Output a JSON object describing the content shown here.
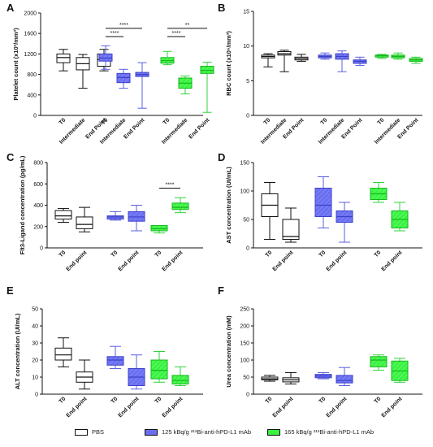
{
  "legend": {
    "pbs": "PBS",
    "blue": "125 kBq/g ²¹³Bi-anti-hPD-L1 mAb",
    "green": "165 kBq/g ²¹³Bi-anti-hPD-L1 mAb"
  },
  "colors": {
    "pbs": "#ffffff",
    "blue": "#6a6ff0",
    "green": "#39f241",
    "edge": "#111111"
  },
  "chart_data": [
    {
      "type": "box",
      "panel": "A",
      "ylabel": "Platelet count (x10³/mm³)",
      "yticks": [
        0,
        400,
        800,
        1200,
        1600,
        2000
      ],
      "ylim": [
        0,
        2000
      ],
      "xticks": [
        "T0",
        "Intermediate",
        "End Point",
        "T0",
        "Intermediate",
        "End Point",
        "T0",
        "Intermediate",
        "End Point"
      ],
      "groups": [
        {
          "series": "pbs",
          "boxes": [
            {
              "min": 870,
              "q1": 1030,
              "median": 1130,
              "q3": 1200,
              "max": 1290
            },
            {
              "min": 530,
              "q1": 890,
              "median": 1010,
              "q3": 1130,
              "max": 1190
            },
            {
              "min": 870,
              "q1": 960,
              "median": 1090,
              "q3": 1200,
              "max": 1290
            }
          ]
        },
        {
          "series": "blue",
          "boxes": [
            {
              "min": 900,
              "q1": 1060,
              "median": 1120,
              "q3": 1200,
              "max": 1360
            },
            {
              "min": 530,
              "q1": 640,
              "median": 740,
              "q3": 820,
              "max": 900
            },
            {
              "min": 140,
              "q1": 760,
              "median": 800,
              "q3": 840,
              "max": 1030
            }
          ]
        },
        {
          "series": "green",
          "boxes": [
            {
              "min": 990,
              "q1": 1020,
              "median": 1070,
              "q3": 1130,
              "max": 1250
            },
            {
              "min": 420,
              "q1": 530,
              "median": 630,
              "q3": 730,
              "max": 770
            },
            {
              "min": 60,
              "q1": 820,
              "median": 880,
              "q3": 960,
              "max": 1040
            }
          ]
        }
      ],
      "annotations": [
        "****",
        "****",
        "****",
        "****",
        "**"
      ]
    },
    {
      "type": "box",
      "panel": "B",
      "ylabel": "RBC count (x10⁶/mm³)",
      "yticks": [
        0,
        5,
        10,
        15
      ],
      "ylim": [
        0,
        15
      ],
      "xticks": [
        "T0",
        "Intermediate",
        "End Point",
        "T0",
        "Intermediate",
        "End Point",
        "T0",
        "Intermediate",
        "End Point"
      ],
      "groups": [
        {
          "series": "pbs",
          "boxes": [
            {
              "min": 7.0,
              "q1": 8.3,
              "median": 8.5,
              "q3": 8.7,
              "max": 8.9
            },
            {
              "min": 6.3,
              "q1": 8.7,
              "median": 8.9,
              "q3": 9.2,
              "max": 9.4
            },
            {
              "min": 7.8,
              "q1": 8.0,
              "median": 8.2,
              "q3": 8.4,
              "max": 8.8
            }
          ]
        },
        {
          "series": "blue",
          "boxes": [
            {
              "min": 8.1,
              "q1": 8.3,
              "median": 8.5,
              "q3": 8.7,
              "max": 9.0
            },
            {
              "min": 6.3,
              "q1": 8.1,
              "median": 8.5,
              "q3": 8.9,
              "max": 9.3
            },
            {
              "min": 7.2,
              "q1": 7.5,
              "median": 7.8,
              "q3": 8.0,
              "max": 8.4
            }
          ]
        },
        {
          "series": "green",
          "boxes": [
            {
              "min": 8.2,
              "q1": 8.4,
              "median": 8.6,
              "q3": 8.7,
              "max": 8.8
            },
            {
              "min": 8.1,
              "q1": 8.3,
              "median": 8.5,
              "q3": 8.7,
              "max": 9.0
            },
            {
              "min": 7.5,
              "q1": 7.8,
              "median": 8.0,
              "q3": 8.2,
              "max": 8.4
            }
          ]
        }
      ],
      "annotations": []
    },
    {
      "type": "box",
      "panel": "C",
      "ylabel": "Flt3-Ligand concentration (pg/mL)",
      "yticks": [
        0,
        200,
        400,
        600,
        800
      ],
      "ylim": [
        0,
        800
      ],
      "xticks": [
        "T0",
        "End point",
        "T0",
        "End point",
        "T0",
        "End point"
      ],
      "groups": [
        {
          "series": "pbs",
          "boxes": [
            {
              "min": 240,
              "q1": 270,
              "median": 300,
              "q3": 350,
              "max": 370
            },
            {
              "min": 150,
              "q1": 180,
              "median": 220,
              "q3": 290,
              "max": 380
            }
          ]
        },
        {
          "series": "blue",
          "boxes": [
            {
              "min": 260,
              "q1": 270,
              "median": 290,
              "q3": 300,
              "max": 340
            },
            {
              "min": 160,
              "q1": 250,
              "median": 290,
              "q3": 340,
              "max": 400
            }
          ]
        },
        {
          "series": "green",
          "boxes": [
            {
              "min": 140,
              "q1": 160,
              "median": 180,
              "q3": 210,
              "max": 210
            },
            {
              "min": 330,
              "q1": 360,
              "median": 380,
              "q3": 420,
              "max": 470
            }
          ]
        }
      ],
      "annotations": [
        "****"
      ]
    },
    {
      "type": "box",
      "panel": "D",
      "ylabel": "AST concentration (UI/mL)",
      "yticks": [
        0,
        50,
        100,
        150
      ],
      "ylim": [
        0,
        150
      ],
      "xticks": [
        "T0",
        "End point",
        "T0",
        "End point",
        "T0",
        "End point"
      ],
      "groups": [
        {
          "series": "pbs",
          "boxes": [
            {
              "min": 15,
              "q1": 55,
              "median": 75,
              "q3": 95,
              "max": 115
            },
            {
              "min": 10,
              "q1": 15,
              "median": 20,
              "q3": 50,
              "max": 70
            }
          ]
        },
        {
          "series": "blue",
          "boxes": [
            {
              "min": 35,
              "q1": 55,
              "median": 75,
              "q3": 105,
              "max": 125
            },
            {
              "min": 10,
              "q1": 45,
              "median": 55,
              "q3": 65,
              "max": 80
            }
          ]
        },
        {
          "series": "green",
          "boxes": [
            {
              "min": 80,
              "q1": 85,
              "median": 95,
              "q3": 105,
              "max": 115
            },
            {
              "min": 30,
              "q1": 35,
              "median": 50,
              "q3": 65,
              "max": 80
            }
          ]
        }
      ],
      "annotations": []
    },
    {
      "type": "box",
      "panel": "E",
      "ylabel": "ALT concentration (UI/mL)",
      "yticks": [
        0,
        10,
        20,
        30,
        40,
        50
      ],
      "ylim": [
        0,
        50
      ],
      "xticks": [
        "T0",
        "End point",
        "T0",
        "End point",
        "T0",
        "End point"
      ],
      "groups": [
        {
          "series": "pbs",
          "boxes": [
            {
              "min": 16,
              "q1": 20,
              "median": 23,
              "q3": 27,
              "max": 33
            },
            {
              "min": 3,
              "q1": 7,
              "median": 10,
              "q3": 13,
              "max": 20
            }
          ]
        },
        {
          "series": "blue",
          "boxes": [
            {
              "min": 15,
              "q1": 17,
              "median": 20,
              "q3": 22,
              "max": 28
            },
            {
              "min": 3,
              "q1": 5,
              "median": 10,
              "q3": 15,
              "max": 23
            }
          ]
        },
        {
          "series": "green",
          "boxes": [
            {
              "min": 7,
              "q1": 9,
              "median": 14,
              "q3": 20,
              "max": 25
            },
            {
              "min": 5,
              "q1": 6,
              "median": 8,
              "q3": 11,
              "max": 16
            }
          ]
        }
      ],
      "annotations": []
    },
    {
      "type": "box",
      "panel": "F",
      "ylabel": "Urea concentration (mM)",
      "yticks": [
        0,
        50,
        100,
        150,
        200,
        250
      ],
      "ylim": [
        0,
        250
      ],
      "xticks": [
        "T0",
        "End point",
        "T0",
        "End point",
        "T0",
        "End point"
      ],
      "groups": [
        {
          "series": "pbs",
          "boxes": [
            {
              "min": 38,
              "q1": 42,
              "median": 45,
              "q3": 50,
              "max": 55
            },
            {
              "min": 30,
              "q1": 36,
              "median": 42,
              "q3": 48,
              "max": 63
            }
          ]
        },
        {
          "series": "blue",
          "boxes": [
            {
              "min": 45,
              "q1": 48,
              "median": 53,
              "q3": 58,
              "max": 63
            },
            {
              "min": 25,
              "q1": 33,
              "median": 40,
              "q3": 55,
              "max": 78
            }
          ]
        },
        {
          "series": "green",
          "boxes": [
            {
              "min": 70,
              "q1": 80,
              "median": 100,
              "q3": 110,
              "max": 115
            },
            {
              "min": 35,
              "q1": 40,
              "median": 68,
              "q3": 97,
              "max": 105
            }
          ]
        }
      ],
      "annotations": []
    }
  ]
}
